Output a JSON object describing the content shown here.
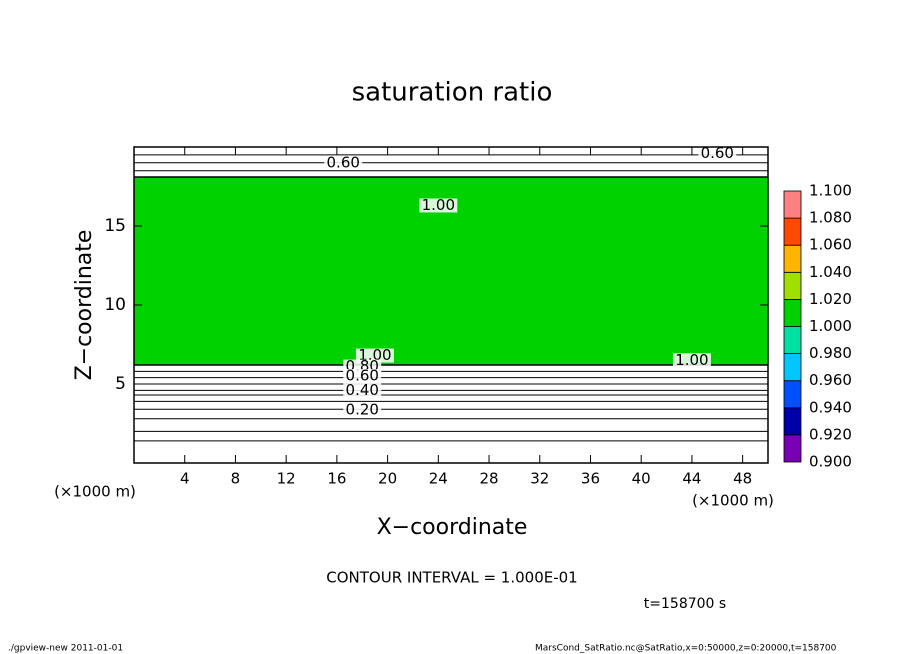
{
  "chart_data": {
    "type": "contour",
    "title": "saturation ratio",
    "x_label": "X−coordinate",
    "y_label": "Z−coordinate",
    "x_unit": "(×1000 m)",
    "y_unit": "(×1000 m)",
    "xlim": [
      0,
      50
    ],
    "ylim": [
      0,
      20
    ],
    "xticks": [
      4,
      8,
      12,
      16,
      20,
      24,
      28,
      32,
      36,
      40,
      44,
      48
    ],
    "yticks": [
      5,
      10,
      15
    ],
    "colorbar": {
      "ticks": [
        {
          "value": 0.9,
          "label": "0.900"
        },
        {
          "value": 0.92,
          "label": "0.920"
        },
        {
          "value": 0.94,
          "label": "0.940"
        },
        {
          "value": 0.96,
          "label": "0.960"
        },
        {
          "value": 0.98,
          "label": "0.980"
        },
        {
          "value": 1.0,
          "label": "1.000"
        },
        {
          "value": 1.02,
          "label": "1.020"
        },
        {
          "value": 1.04,
          "label": "1.040"
        },
        {
          "value": 1.06,
          "label": "1.060"
        },
        {
          "value": 1.08,
          "label": "1.080"
        },
        {
          "value": 1.1,
          "label": "1.100"
        }
      ],
      "colors": [
        "#7a00b4",
        "#0000a8",
        "#0050ff",
        "#00c8ff",
        "#00e0a0",
        "#00d200",
        "#a0e000",
        "#ffb400",
        "#ff4800",
        "#ff8080"
      ]
    },
    "regions": [
      {
        "z": [
          6.2,
          18.1
        ],
        "value": 1.0
      }
    ],
    "contours": [
      {
        "z": 1.4,
        "level": 0.1
      },
      {
        "z": 2.0,
        "level": 0.15
      },
      {
        "z": 2.8,
        "level": 0.18
      },
      {
        "z": 3.4,
        "level": 0.2
      },
      {
        "z": 3.9,
        "level": 0.3
      },
      {
        "z": 4.3,
        "level": 0.35
      },
      {
        "z": 4.6,
        "level": 0.4
      },
      {
        "z": 5.0,
        "level": 0.5
      },
      {
        "z": 5.4,
        "level": 0.6
      },
      {
        "z": 5.8,
        "level": 0.8
      },
      {
        "z": 6.2,
        "level": 1.0
      },
      {
        "z": 18.1,
        "level": 1.0
      },
      {
        "z": 18.5,
        "level": 0.8
      },
      {
        "z": 19.0,
        "level": 0.6
      },
      {
        "z": 19.5,
        "level": 0.5
      }
    ],
    "contour_labels": [
      {
        "x": 19,
        "z": 6.8,
        "text": "1.00"
      },
      {
        "x": 18,
        "z": 6.1,
        "text": "0.80"
      },
      {
        "x": 18,
        "z": 5.5,
        "text": "0.60"
      },
      {
        "x": 18,
        "z": 4.6,
        "text": "0.40"
      },
      {
        "x": 18,
        "z": 3.35,
        "text": "0.20"
      },
      {
        "x": 24,
        "z": 16.3,
        "text": "1.00"
      },
      {
        "x": 44,
        "z": 6.5,
        "text": "1.00"
      },
      {
        "x": 16.5,
        "z": 19.0,
        "text": "0.60"
      },
      {
        "x": 46,
        "z": 19.6,
        "text": "0.60"
      }
    ],
    "contour_interval": "CONTOUR INTERVAL = 1.000E-01",
    "time": "t=158700 s",
    "footer_left": "./gpview-new  2011-01-01",
    "footer_right": "MarsCond_SatRatio.nc@SatRatio,x=0:50000,z=0:20000,t=158700"
  }
}
